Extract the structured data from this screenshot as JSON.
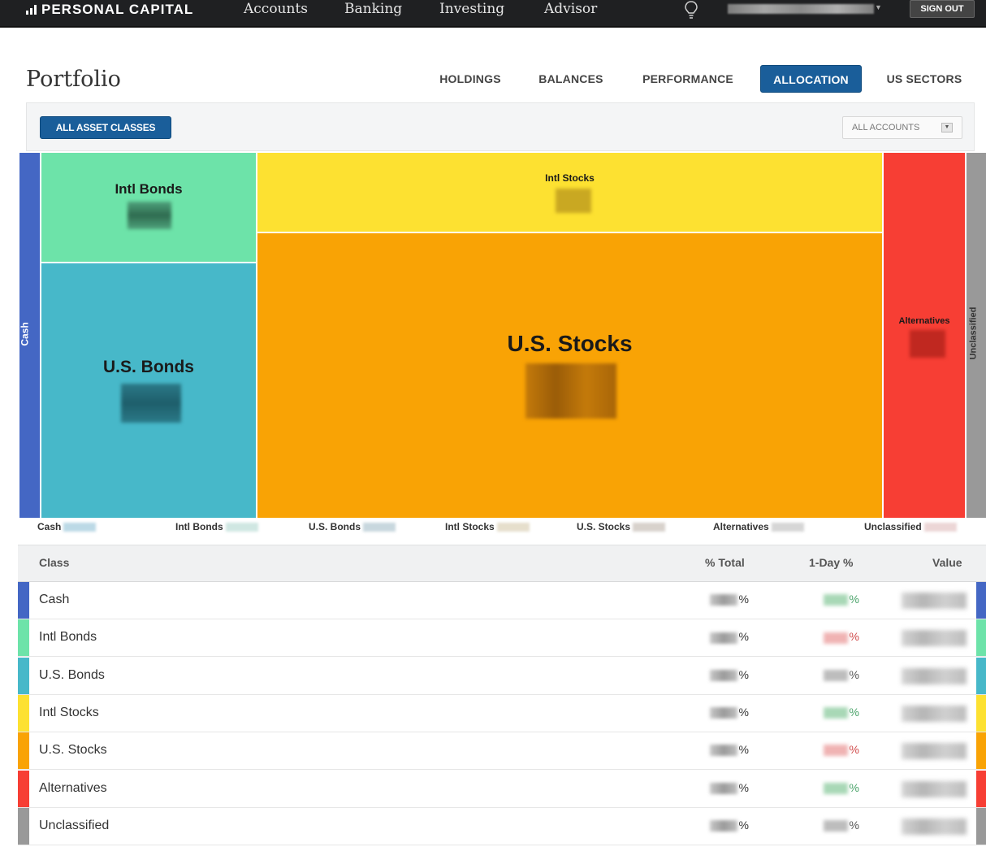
{
  "topnav": {
    "brand": "PERSONAL CAPITAL",
    "links": [
      "Accounts",
      "Banking",
      "Investing",
      "Advisor"
    ],
    "signout": "SIGN OUT"
  },
  "page": {
    "title": "Portfolio",
    "tabs": [
      "HOLDINGS",
      "BALANCES",
      "PERFORMANCE",
      "ALLOCATION",
      "US SECTORS"
    ],
    "active_tab": "ALLOCATION"
  },
  "filters": {
    "asset_classes": "ALL ASSET CLASSES",
    "accounts": "ALL ACCOUNTS"
  },
  "colors": {
    "cash": "#4467c4",
    "intl_bonds": "#6de3a9",
    "us_bonds": "#47b8c9",
    "intl_stocks": "#fde131",
    "us_stocks": "#f9a305",
    "alternatives": "#f73e34",
    "unclassified": "#999999"
  },
  "treemap": {
    "cash": "Cash",
    "intl_bonds": "Intl Bonds",
    "us_bonds": "U.S. Bonds",
    "intl_stocks": "Intl Stocks",
    "us_stocks": "U.S. Stocks",
    "alternatives": "Alternatives",
    "unclassified": "Unclassified"
  },
  "legend": [
    "Cash",
    "Intl Bonds",
    "U.S. Bonds",
    "Intl Stocks",
    "U.S. Stocks",
    "Alternatives",
    "Unclassified"
  ],
  "table": {
    "headers": {
      "class": "Class",
      "pct_total": "% Total",
      "one_day": "1-Day %",
      "value": "Value"
    },
    "percent_sign": "%",
    "rows": [
      {
        "name": "Cash",
        "color": "#4467c4",
        "day_tone": "up"
      },
      {
        "name": "Intl Bonds",
        "color": "#6de3a9",
        "day_tone": "down"
      },
      {
        "name": "U.S. Bonds",
        "color": "#47b8c9",
        "day_tone": "flat"
      },
      {
        "name": "Intl Stocks",
        "color": "#fde131",
        "day_tone": "up"
      },
      {
        "name": "U.S. Stocks",
        "color": "#f9a305",
        "day_tone": "down"
      },
      {
        "name": "Alternatives",
        "color": "#f73e34",
        "day_tone": "up"
      },
      {
        "name": "Unclassified",
        "color": "#999999",
        "day_tone": "flat"
      }
    ]
  }
}
